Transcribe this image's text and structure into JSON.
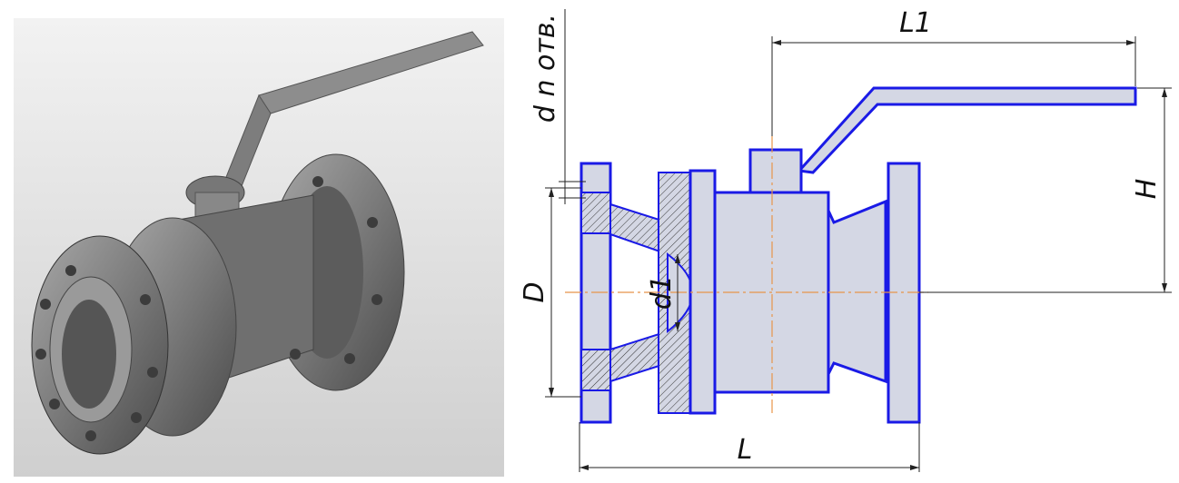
{
  "dimensions": {
    "handle_length": "L1",
    "height": "H",
    "flange_diameter": "D",
    "bore_diameter": "d1",
    "overall_length": "L",
    "holes": "d n отв."
  }
}
